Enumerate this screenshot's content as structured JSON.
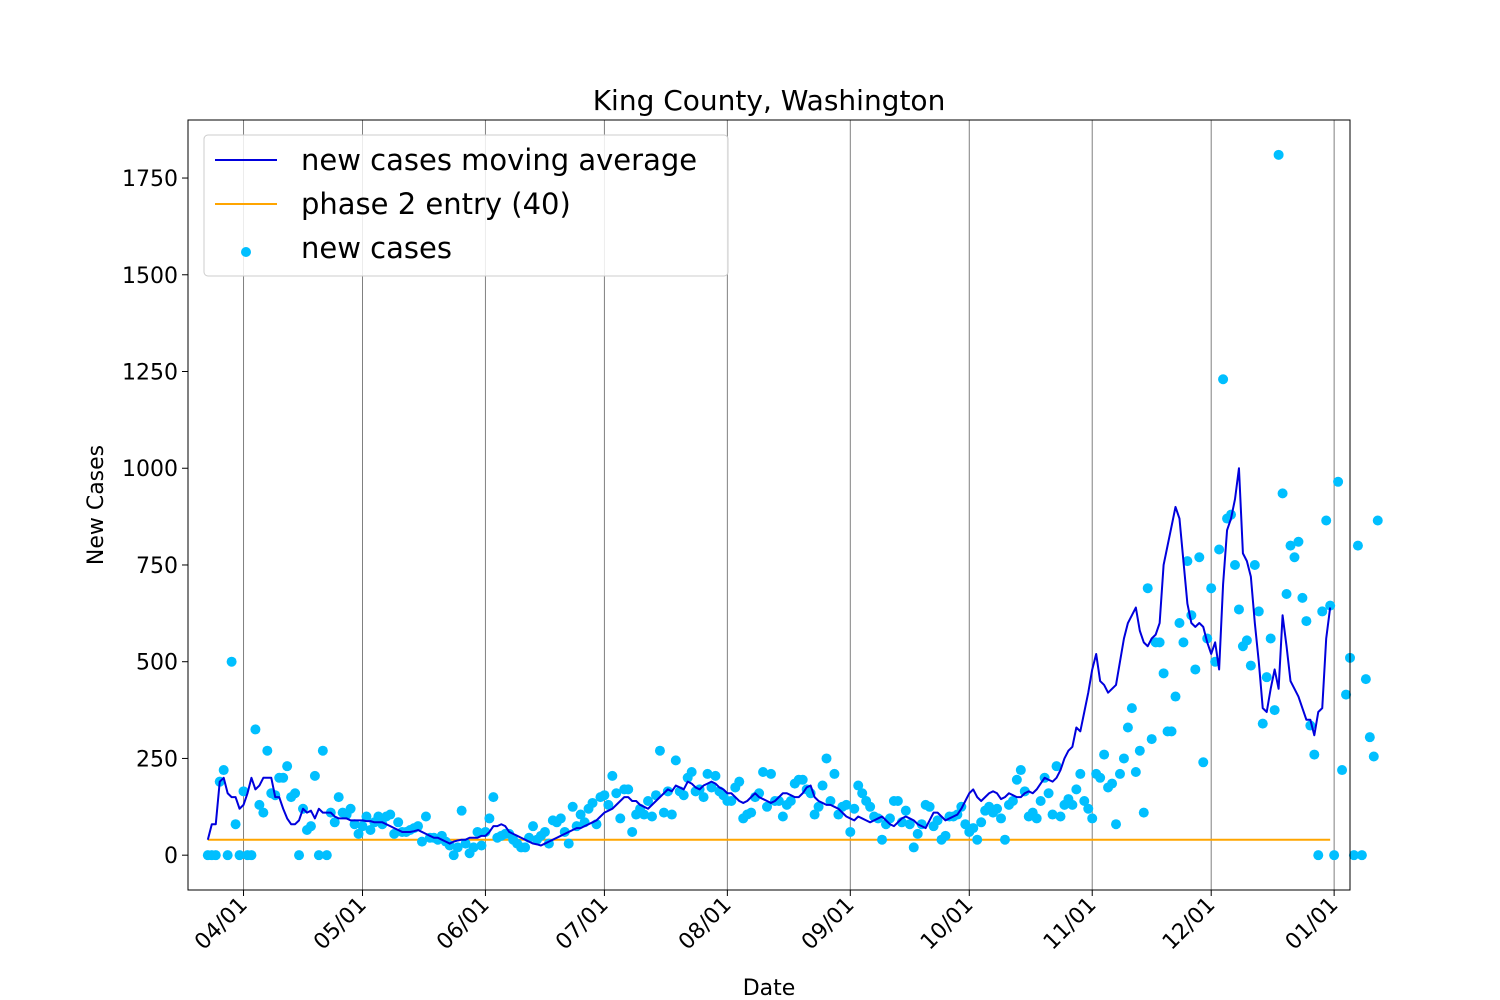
{
  "chart_data": {
    "type": "line",
    "title": "King County, Washington",
    "xlabel": "Date",
    "ylabel": "New Cases",
    "x_start": "2020-03-23",
    "x_end": "2020-12-31",
    "xlim": [
      "2020-03-18",
      "2021-01-05"
    ],
    "ylim": [
      -90,
      1900
    ],
    "x_ticks": [
      {
        "date": "2020-04-01",
        "label": "04/01"
      },
      {
        "date": "2020-05-01",
        "label": "05/01"
      },
      {
        "date": "2020-06-01",
        "label": "06/01"
      },
      {
        "date": "2020-07-01",
        "label": "07/01"
      },
      {
        "date": "2020-08-01",
        "label": "08/01"
      },
      {
        "date": "2020-09-01",
        "label": "09/01"
      },
      {
        "date": "2020-10-01",
        "label": "10/01"
      },
      {
        "date": "2020-11-01",
        "label": "11/01"
      },
      {
        "date": "2020-12-01",
        "label": "12/01"
      },
      {
        "date": "2021-01-01",
        "label": "01/01"
      }
    ],
    "y_ticks": [
      0,
      250,
      500,
      750,
      1000,
      1250,
      1500,
      1750
    ],
    "grid": "vertical lines at x ticks",
    "legend_position": "upper-left",
    "colors": {
      "moving_average": "#0000dd",
      "phase2": "#ffa500",
      "new_cases": "#00bfff"
    },
    "series": [
      {
        "name": "new cases moving average",
        "kind": "line",
        "values": [
          40,
          80,
          80,
          190,
          200,
          160,
          150,
          150,
          120,
          130,
          160,
          200,
          170,
          180,
          200,
          200,
          200,
          150,
          150,
          120,
          95,
          80,
          80,
          90,
          120,
          110,
          115,
          95,
          120,
          110,
          110,
          110,
          100,
          95,
          95,
          95,
          90,
          90,
          90,
          90,
          88,
          88,
          85,
          85,
          85,
          80,
          75,
          70,
          65,
          60,
          60,
          60,
          62,
          65,
          60,
          55,
          50,
          45,
          45,
          40,
          35,
          30,
          35,
          38,
          40,
          40,
          45,
          45,
          45,
          50,
          50,
          60,
          75,
          75,
          80,
          75,
          60,
          55,
          50,
          45,
          40,
          35,
          30,
          28,
          25,
          30,
          35,
          40,
          45,
          50,
          55,
          60,
          65,
          70,
          70,
          75,
          80,
          85,
          90,
          100,
          110,
          115,
          120,
          130,
          140,
          150,
          150,
          140,
          140,
          130,
          125,
          120,
          130,
          140,
          150,
          160,
          170,
          165,
          180,
          175,
          170,
          190,
          185,
          175,
          170,
          180,
          185,
          190,
          185,
          175,
          170,
          160,
          160,
          150,
          140,
          135,
          140,
          150,
          160,
          150,
          145,
          140,
          135,
          140,
          150,
          160,
          160,
          155,
          150,
          150,
          160,
          175,
          180,
          150,
          140,
          135,
          130,
          130,
          125,
          120,
          110,
          100,
          95,
          90,
          100,
          95,
          90,
          85,
          90,
          95,
          100,
          90,
          80,
          75,
          85,
          95,
          100,
          95,
          90,
          80,
          75,
          70,
          90,
          110,
          110,
          100,
          90,
          95,
          100,
          105,
          120,
          140,
          160,
          170,
          150,
          140,
          150,
          160,
          165,
          160,
          145,
          150,
          160,
          155,
          150,
          150,
          160,
          165,
          160,
          170,
          185,
          200,
          195,
          190,
          200,
          220,
          250,
          270,
          280,
          330,
          320,
          370,
          420,
          480,
          520,
          450,
          440,
          420,
          430,
          440,
          500,
          560,
          600,
          620,
          640,
          580,
          550,
          540,
          560,
          570,
          600,
          750,
          800,
          850,
          900,
          870,
          760,
          650,
          600,
          590,
          600,
          590,
          550,
          520,
          550,
          480,
          700,
          840,
          870,
          920,
          1000,
          780,
          760,
          720,
          600,
          500,
          380,
          370,
          430,
          480,
          430,
          620,
          540,
          450,
          430,
          410,
          380,
          350,
          350,
          310,
          370,
          380,
          560,
          640
        ]
      },
      {
        "name": "phase 2 entry (40)",
        "kind": "constant",
        "value": 40
      },
      {
        "name": "new cases",
        "kind": "scatter",
        "values": [
          0,
          0,
          0,
          190,
          220,
          0,
          500,
          80,
          0,
          165,
          0,
          0,
          325,
          130,
          110,
          270,
          160,
          155,
          200,
          200,
          230,
          150,
          160,
          0,
          120,
          65,
          75,
          205,
          0,
          270,
          0,
          110,
          85,
          150,
          110,
          105,
          120,
          80,
          55,
          75,
          100,
          65,
          85,
          100,
          80,
          100,
          105,
          55,
          85,
          60,
          60,
          65,
          70,
          75,
          35,
          100,
          45,
          45,
          40,
          50,
          35,
          25,
          0,
          20,
          115,
          30,
          5,
          20,
          60,
          25,
          60,
          95,
          150,
          45,
          50,
          55,
          55,
          40,
          30,
          20,
          20,
          45,
          75,
          40,
          50,
          60,
          30,
          90,
          85,
          95,
          60,
          30,
          125,
          75,
          105,
          85,
          120,
          135,
          80,
          150,
          155,
          130,
          205,
          160,
          95,
          170,
          170,
          60,
          105,
          120,
          105,
          140,
          100,
          155,
          270,
          110,
          165,
          105,
          245,
          165,
          155,
          200,
          215,
          165,
          170,
          150,
          210,
          175,
          205,
          165,
          155,
          140,
          140,
          175,
          190,
          95,
          105,
          110,
          150,
          160,
          215,
          125,
          210,
          140,
          140,
          100,
          130,
          140,
          185,
          195,
          195,
          170,
          160,
          105,
          125,
          180,
          250,
          140,
          210,
          105,
          125,
          130,
          60,
          120,
          180,
          160,
          140,
          125,
          100,
          95,
          40,
          80,
          95,
          140,
          140,
          85,
          115,
          80,
          20,
          55,
          80,
          130,
          125,
          75,
          90,
          40,
          50,
          100,
          100,
          105,
          125,
          80,
          60,
          70,
          40,
          85,
          115,
          125,
          110,
          120,
          95,
          40,
          130,
          140,
          195,
          220,
          165,
          100,
          110,
          95,
          140,
          200,
          160,
          105,
          230,
          100,
          130,
          145,
          130,
          170,
          210,
          140,
          120,
          95,
          210,
          200,
          260,
          175,
          185,
          80,
          210,
          250,
          330,
          380,
          215,
          270,
          110,
          690,
          300,
          550,
          550,
          470,
          320,
          320,
          410,
          600,
          550,
          760,
          620,
          480,
          770,
          240,
          560,
          690,
          500,
          790,
          1230,
          870,
          880,
          750,
          635,
          540,
          555,
          490,
          750,
          630,
          340,
          460,
          560,
          375,
          1810,
          935,
          675,
          800,
          770,
          810,
          665,
          605,
          335,
          260,
          0,
          630,
          865,
          645,
          0,
          965,
          220,
          415,
          510,
          0,
          800,
          0,
          455,
          305,
          255,
          865
        ]
      }
    ]
  }
}
